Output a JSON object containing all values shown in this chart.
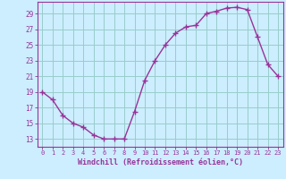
{
  "x": [
    0,
    1,
    2,
    3,
    4,
    5,
    6,
    7,
    8,
    9,
    10,
    11,
    12,
    13,
    14,
    15,
    16,
    17,
    18,
    19,
    20,
    21,
    22,
    23
  ],
  "y": [
    19,
    18,
    16,
    15,
    14.5,
    13.5,
    13,
    13,
    13,
    16.5,
    20.5,
    23,
    25,
    26.5,
    27.3,
    27.5,
    29,
    29.3,
    29.7,
    29.8,
    29.5,
    26,
    22.5,
    21
  ],
  "line_color": "#993399",
  "marker": "D",
  "marker_size": 2.0,
  "bg_color": "#cceeff",
  "grid_color": "#99cccc",
  "xlabel": "Windchill (Refroidissement éolien,°C)",
  "xlabel_color": "#993399",
  "ylabel_ticks": [
    13,
    15,
    17,
    19,
    21,
    23,
    25,
    27,
    29
  ],
  "xtick_labels": [
    "0",
    "1",
    "2",
    "3",
    "4",
    "5",
    "6",
    "7",
    "8",
    "9",
    "10",
    "11",
    "12",
    "13",
    "14",
    "15",
    "16",
    "17",
    "18",
    "19",
    "20",
    "21",
    "22",
    "23"
  ],
  "ylim": [
    12.0,
    30.5
  ],
  "xlim": [
    -0.5,
    23.5
  ],
  "tick_color": "#993399",
  "font_name": "monospace",
  "linewidth": 1.0
}
